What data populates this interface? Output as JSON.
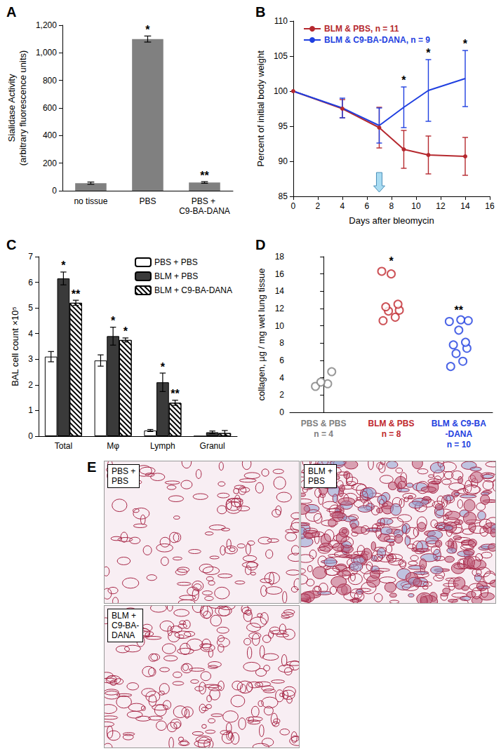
{
  "chart_data": [
    {
      "title": "A",
      "type": "bar",
      "categories": [
        "no tissue",
        "PBS",
        "PBS + C9-BA-DANA"
      ],
      "values": [
        55,
        1100,
        60
      ],
      "errors": [
        8,
        22,
        6
      ],
      "annotations": [
        null,
        "*",
        "**"
      ],
      "color": "#808080",
      "ylabel": "Sialidase Activity\n(arbitrary fluorescence units)",
      "ylim": [
        0,
        1200
      ],
      "yticks": [
        0,
        200,
        400,
        600,
        800,
        1000,
        1200
      ],
      "grid": false
    },
    {
      "title": "B",
      "type": "line",
      "x": [
        0,
        4,
        7,
        9,
        11,
        14
      ],
      "series": [
        {
          "name": "BLM & PBS, n = 11",
          "color": "#b5282e",
          "marker": "circle",
          "values": [
            100,
            97.5,
            94.8,
            91.7,
            90.9,
            90.7
          ],
          "errors": [
            0,
            1.3,
            2.9,
            2.7,
            2.7,
            2.7
          ]
        },
        {
          "name": "BLM & C9-BA-DANA, n = 9",
          "color": "#1f3fe0",
          "marker": "none",
          "values": [
            100,
            97.6,
            95.1,
            97.7,
            100.1,
            101.8
          ],
          "errors": [
            0,
            1.4,
            2.5,
            2.9,
            4.4,
            4.0
          ]
        }
      ],
      "annotations": [
        {
          "x": 9,
          "text": "*"
        },
        {
          "x": 11,
          "text": "*"
        },
        {
          "x": 14,
          "text": "*"
        }
      ],
      "arrow_day": 7,
      "xlabel": "Days after bleomycin",
      "ylabel": "Percent of initial body weight",
      "xlim": [
        0,
        16
      ],
      "xticks": [
        0,
        2,
        4,
        6,
        8,
        10,
        12,
        14,
        16
      ],
      "ylim": [
        85,
        110
      ],
      "yticks": [
        85,
        90,
        95,
        100,
        105,
        110
      ],
      "legend": "upper left",
      "grid": false
    },
    {
      "title": "C",
      "type": "bar",
      "categories": [
        "Total",
        "Mφ",
        "Lymph",
        "Granul"
      ],
      "series": [
        {
          "name": "PBS + PBS",
          "color": "#ffffff",
          "values": [
            3.1,
            2.95,
            0.22,
            0
          ],
          "errors": [
            0.2,
            0.22,
            0.04,
            0
          ],
          "annotations": [
            null,
            null,
            null,
            null
          ]
        },
        {
          "name": "BLM + PBS",
          "color": "#3a3a3a",
          "values": [
            6.15,
            3.9,
            2.1,
            0.15
          ],
          "errors": [
            0.25,
            0.35,
            0.36,
            0.05
          ],
          "annotations": [
            "*",
            "*",
            "*",
            null
          ]
        },
        {
          "name": "BLM + C9-BA-DANA",
          "color": "#ffffff",
          "marker": "hatch",
          "values": [
            5.2,
            3.75,
            1.3,
            0.12
          ],
          "errors": [
            0.1,
            0.08,
            0.1,
            0.1
          ],
          "annotations": [
            "**",
            "*",
            "**",
            null
          ]
        }
      ],
      "ylabel": "BAL cell count ×10⁵",
      "ylim": [
        0,
        7
      ],
      "yticks": [
        0,
        1,
        2,
        3,
        4,
        5,
        6,
        7
      ],
      "legend": "upper right",
      "grid": false
    },
    {
      "title": "D",
      "type": "scatter",
      "series": [
        {
          "name": "PBS & PBS\nn = 4",
          "color": "#808080",
          "marker": "open circle",
          "values": [
            3.0,
            3.3,
            3.5,
            4.7
          ],
          "annotation": null
        },
        {
          "name": "BLM & PBS\nn = 8",
          "color": "#c0282e",
          "marker": "open circle",
          "values": [
            10.6,
            11.0,
            11.7,
            11.8,
            12.2,
            12.5,
            16.0,
            16.3
          ],
          "annotation": "*"
        },
        {
          "name": "BLM & C9-BA\n-DANA\nn = 10",
          "color": "#1f3fe0",
          "marker": "open circle",
          "values": [
            5.3,
            5.9,
            6.8,
            7.4,
            7.8,
            8.1,
            9.5,
            10.5,
            10.7,
            10.6
          ],
          "annotation": "**"
        }
      ],
      "ylabel": "collagen, µg / mg wet lung tissue",
      "ylim": [
        0,
        18
      ],
      "yticks": [
        0,
        2,
        4,
        6,
        8,
        10,
        12,
        14,
        16,
        18
      ],
      "grid": false
    }
  ],
  "panel_e": {
    "label": "E",
    "images": [
      "PBS +\nPBS",
      "BLM +\nPBS",
      "BLM +\nC9-BA-\nDANA"
    ]
  }
}
